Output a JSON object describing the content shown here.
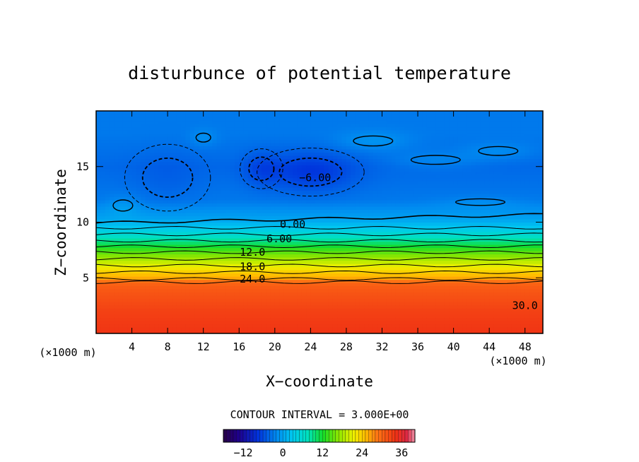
{
  "chart_data": {
    "type": "heatmap",
    "title": "disturbunce of potential temperature",
    "xlabel": "X−coordinate",
    "ylabel": "Z−coordinate",
    "x_unit": "(×1000 m)",
    "x_unit_right": "(×1000 m)",
    "xlim": [
      0,
      50
    ],
    "ylim": [
      0,
      20
    ],
    "x_ticks": [
      4,
      8,
      12,
      16,
      20,
      24,
      28,
      32,
      36,
      40,
      44,
      48
    ],
    "y_ticks": [
      5,
      10,
      15
    ],
    "value_range": [
      -18,
      40
    ],
    "contour_interval_text": "CONTOUR INTERVAL = 3.000E+00",
    "colorbar_ticks": [
      -12,
      0,
      12,
      24,
      36
    ],
    "contour_labels": [
      {
        "text": "−6.00",
        "x": 24.5,
        "z": 14.0
      },
      {
        "text": "0.00",
        "x": 22.0,
        "z": 9.8
      },
      {
        "text": "6.00",
        "x": 20.5,
        "z": 8.5
      },
      {
        "text": "12.0",
        "x": 17.5,
        "z": 7.3
      },
      {
        "text": "18.0",
        "x": 17.5,
        "z": 6.0
      },
      {
        "text": "24.0",
        "x": 17.5,
        "z": 4.9
      },
      {
        "text": "30.0",
        "x": 48.0,
        "z": 2.5
      }
    ],
    "profile": [
      {
        "z": 0.0,
        "theta": 34
      },
      {
        "z": 2.0,
        "theta": 33
      },
      {
        "z": 4.0,
        "theta": 31
      },
      {
        "z": 4.6,
        "theta": 30
      },
      {
        "z": 5.0,
        "theta": 26
      },
      {
        "z": 5.5,
        "theta": 24
      },
      {
        "z": 6.5,
        "theta": 19
      },
      {
        "z": 7.5,
        "theta": 14
      },
      {
        "z": 8.5,
        "theta": 8
      },
      {
        "z": 9.5,
        "theta": 3
      },
      {
        "z": 10.3,
        "theta": 0
      },
      {
        "z": 12.0,
        "theta": -3
      },
      {
        "z": 15.0,
        "theta": -4
      },
      {
        "z": 18.0,
        "theta": -3
      },
      {
        "z": 20.0,
        "theta": -3
      }
    ],
    "anomalies": [
      {
        "x": 24.0,
        "z": 14.5,
        "rx": 5.0,
        "rz": 1.8,
        "amp": -3.5
      },
      {
        "x": 18.5,
        "z": 14.8,
        "rx": 2.0,
        "rz": 1.5,
        "amp": -2.0
      },
      {
        "x": 31.0,
        "z": 17.3,
        "rx": 4.0,
        "rz": 0.9,
        "amp": 2.0
      },
      {
        "x": 38.0,
        "z": 15.6,
        "rx": 5.0,
        "rz": 0.8,
        "amp": 1.5
      },
      {
        "x": 45.0,
        "z": 16.4,
        "rx": 4.0,
        "rz": 0.8,
        "amp": 1.6
      },
      {
        "x": 3.0,
        "z": 11.5,
        "rx": 2.0,
        "rz": 1.0,
        "amp": 1.5
      },
      {
        "x": 12.0,
        "z": 17.6,
        "rx": 1.5,
        "rz": 0.8,
        "amp": 1.5
      },
      {
        "x": 8.0,
        "z": 14.0,
        "rx": 4.0,
        "rz": 2.5,
        "amp": -1.0
      },
      {
        "x": 43.0,
        "z": 11.8,
        "rx": 5.0,
        "rz": 0.6,
        "amp": 1.0
      }
    ]
  }
}
